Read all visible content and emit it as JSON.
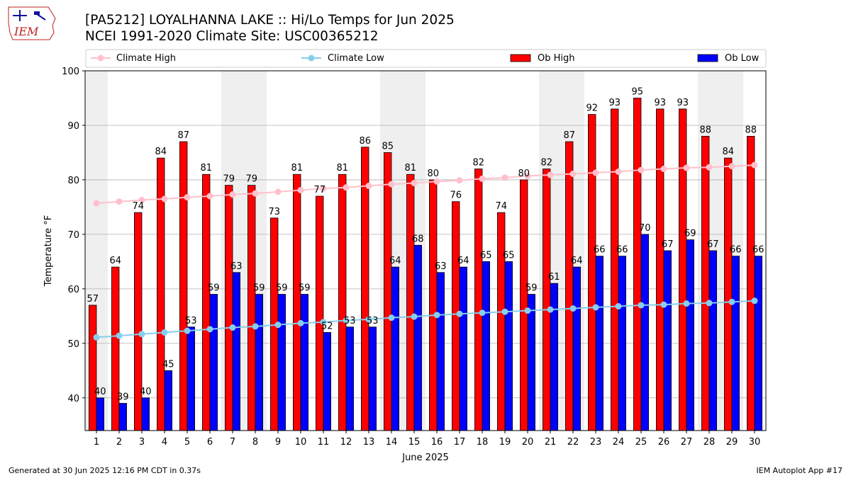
{
  "header": {
    "title_line1": "[PA5212] LOYALHANNA LAKE :: Hi/Lo Temps for Jun 2025",
    "title_line2": "NCEI 1991-2020 Climate Site: USC00365212"
  },
  "logo": {
    "text": "IEM",
    "icon": "iem-iowa-logo"
  },
  "footer": {
    "left": "Generated at 30 Jun 2025 12:16 PM CDT in 0.37s",
    "right": "IEM Autoplot App #17"
  },
  "chart_data": {
    "type": "bar",
    "xlabel": "June 2025",
    "ylabel": "Temperature $^\\circ$F",
    "ylabel_display": "Temperature °F",
    "ylim": [
      34,
      100
    ],
    "yticks": [
      40,
      50,
      60,
      70,
      80,
      90,
      100
    ],
    "grid": true,
    "legend_placement": "top",
    "categories": [
      "1",
      "2",
      "3",
      "4",
      "5",
      "6",
      "7",
      "8",
      "9",
      "10",
      "11",
      "12",
      "13",
      "14",
      "15",
      "16",
      "17",
      "18",
      "19",
      "20",
      "21",
      "22",
      "23",
      "24",
      "25",
      "26",
      "27",
      "28",
      "29",
      "30"
    ],
    "weekend_shading_days": [
      [
        1,
        1
      ],
      [
        7,
        8
      ],
      [
        14,
        15
      ],
      [
        21,
        22
      ],
      [
        28,
        29
      ]
    ],
    "series": [
      {
        "name": "Climate High",
        "kind": "line",
        "color": "#ffc0cb",
        "values": [
          75.7,
          76.0,
          76.3,
          76.5,
          76.8,
          77.0,
          77.3,
          77.5,
          77.8,
          78.1,
          78.4,
          78.6,
          78.9,
          79.2,
          79.4,
          79.7,
          79.9,
          80.2,
          80.4,
          80.7,
          80.9,
          81.1,
          81.3,
          81.5,
          81.8,
          82.0,
          82.2,
          82.3,
          82.5,
          82.7
        ]
      },
      {
        "name": "Climate Low",
        "kind": "line",
        "color": "#87ceeb",
        "values": [
          51.1,
          51.4,
          51.7,
          52.0,
          52.3,
          52.6,
          52.9,
          53.1,
          53.4,
          53.7,
          53.9,
          54.2,
          54.4,
          54.7,
          54.9,
          55.2,
          55.4,
          55.6,
          55.8,
          56.0,
          56.2,
          56.4,
          56.6,
          56.8,
          57.0,
          57.1,
          57.3,
          57.4,
          57.6,
          57.8
        ]
      },
      {
        "name": "Ob High",
        "kind": "bar",
        "color": "#ff0000",
        "values": [
          57,
          64,
          74,
          84,
          87,
          81,
          79,
          79,
          73,
          81,
          77,
          81,
          86,
          85,
          81,
          80,
          76,
          82,
          74,
          80,
          82,
          87,
          92,
          93,
          95,
          93,
          93,
          88,
          84,
          88
        ]
      },
      {
        "name": "Ob Low",
        "kind": "bar",
        "color": "#0000ff",
        "values": [
          40,
          39,
          40,
          45,
          53,
          59,
          63,
          59,
          59,
          59,
          52,
          53,
          53,
          64,
          68,
          63,
          64,
          65,
          65,
          59,
          61,
          64,
          66,
          66,
          70,
          67,
          69,
          67,
          66,
          66
        ]
      }
    ]
  }
}
